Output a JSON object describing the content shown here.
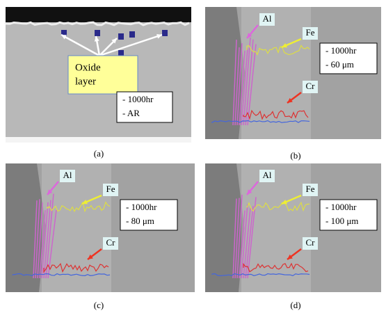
{
  "panels": [
    {
      "caption": "(a)",
      "callout": [
        "Oxide",
        "layer"
      ],
      "conditions": [
        "- 1000hr",
        "- AR"
      ]
    },
    {
      "caption": "(b)",
      "elements": [
        "Al",
        "Fe",
        "Cr"
      ],
      "conditions": [
        "- 1000hr",
        "- 60 μm"
      ]
    },
    {
      "caption": "(c)",
      "elements": [
        "Al",
        "Fe",
        "Cr"
      ],
      "conditions": [
        "- 1000hr",
        "- 80 μm"
      ]
    },
    {
      "caption": "(d)",
      "elements": [
        "Al",
        "Fe",
        "Cr"
      ],
      "conditions": [
        "- 1000hr",
        "- 100 μm"
      ]
    }
  ]
}
